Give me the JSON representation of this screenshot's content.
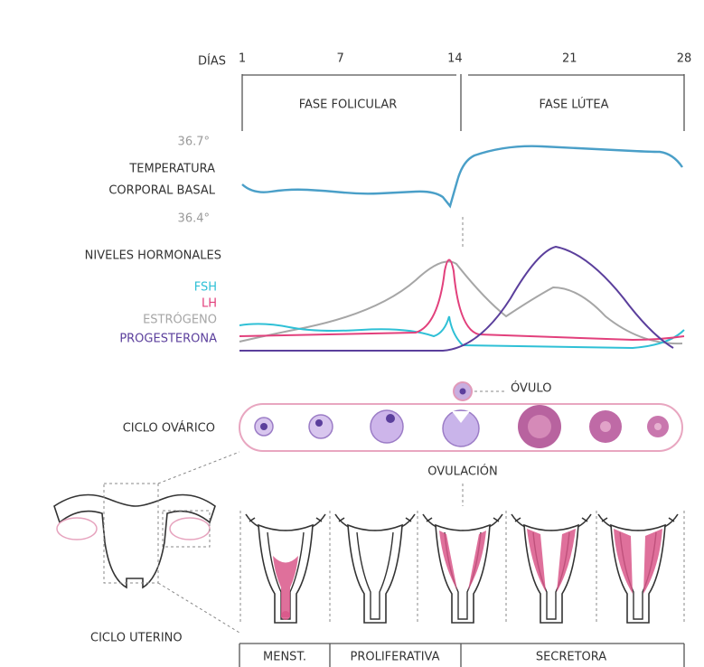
{
  "days": {
    "label": "DÍAS",
    "ticks": [
      1,
      7,
      14,
      21,
      28
    ]
  },
  "phases": [
    "FASE FOLICULAR",
    "FASE LÚTEA"
  ],
  "temperature": {
    "high": "36.7°",
    "label": [
      "TEMPERATURA",
      "CORPORAL BASAL"
    ],
    "low": "36.4°",
    "color": "#4a9fc8"
  },
  "hormones": {
    "title": "NIVELES HORMONALES",
    "legend": [
      {
        "name": "FSH",
        "color": "#2fc0d6"
      },
      {
        "name": "LH",
        "color": "#e2407c"
      },
      {
        "name": "ESTRÓGENO",
        "color": "#a6a6a6"
      },
      {
        "name": "PROGESTERONA",
        "color": "#5b3f9c"
      }
    ]
  },
  "ovarian": {
    "label": "CICLO OVÁRICO",
    "ovum": "ÓVULO",
    "ovulation": "OVULACIÓN"
  },
  "uterine": {
    "label": "CICLO UTERINO",
    "phases": [
      "MENST.",
      "PROLIFERATIVA",
      "SECRETORA"
    ]
  }
}
